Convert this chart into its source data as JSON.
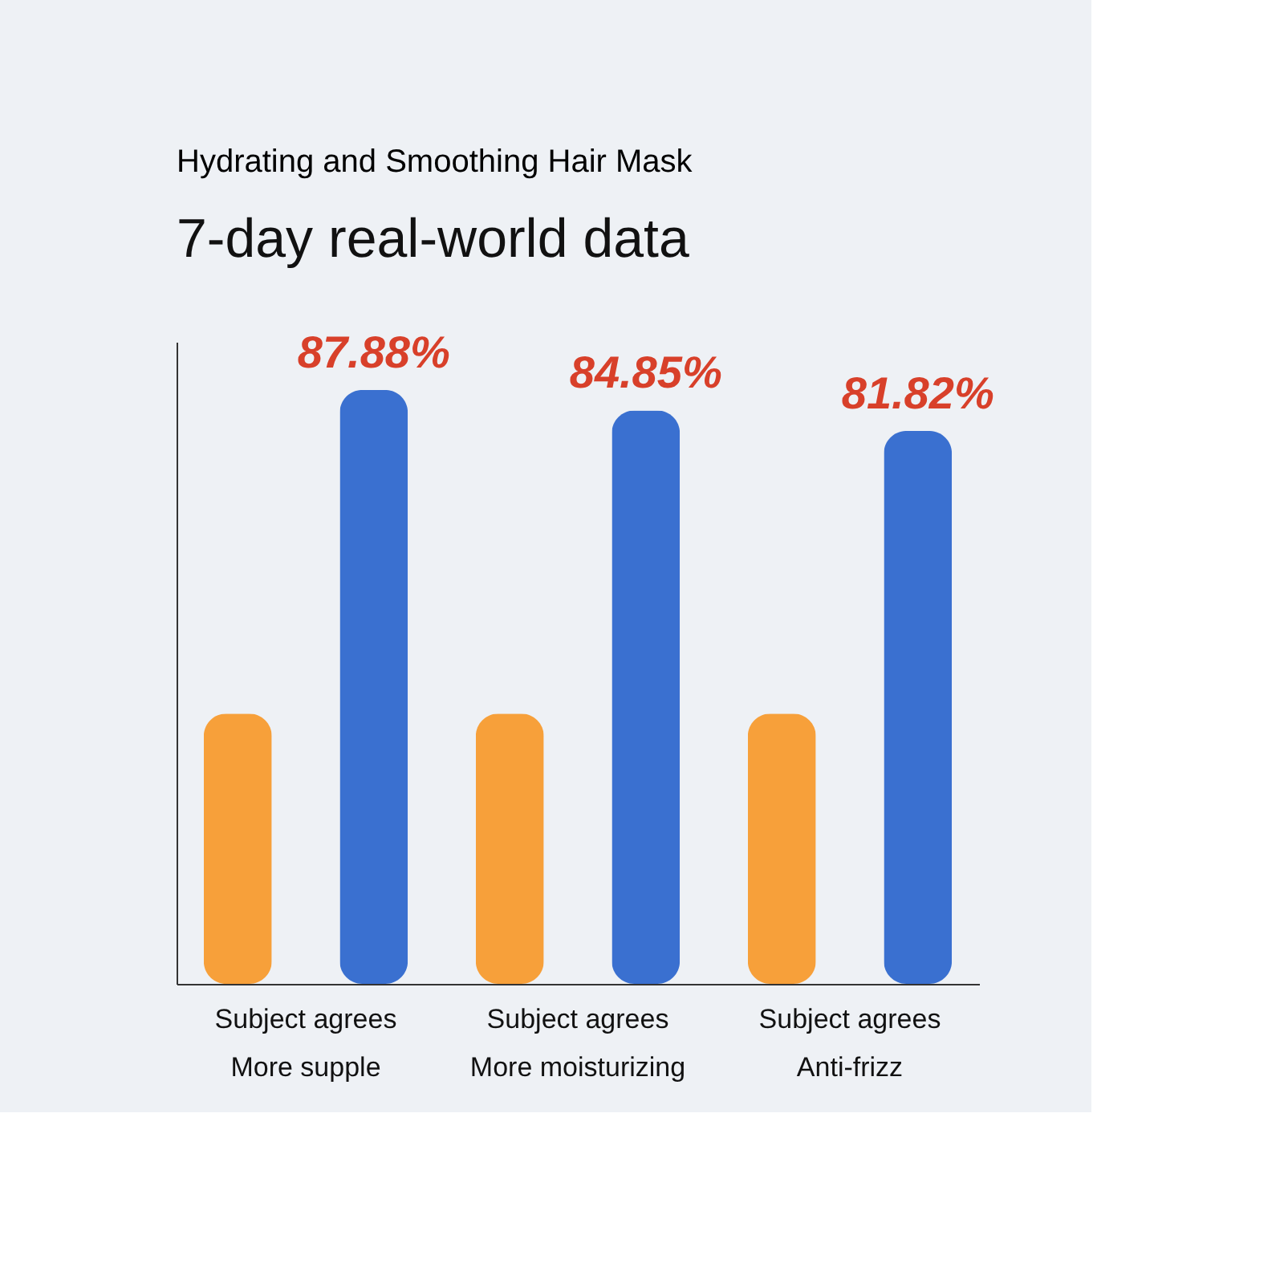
{
  "chart_data": {
    "type": "bar",
    "title": "Hydrating and Smoothing Hair Mask",
    "subtitle": "7-day real-world data",
    "categories": [
      "Subject agrees\nMore supple",
      "Subject agrees\nMore moisturizing",
      "Subject agrees\nAnti-frizz"
    ],
    "ylim": [
      0,
      95
    ],
    "tick_labels": false,
    "series": [
      {
        "color": "#f7a03a",
        "values": [
          40,
          40,
          40
        ]
      },
      {
        "color": "#3a70d0",
        "values": [
          87.88,
          84.85,
          81.82
        ],
        "value_labels": [
          "87.88%",
          "84.85%",
          "81.82%"
        ]
      }
    ]
  }
}
